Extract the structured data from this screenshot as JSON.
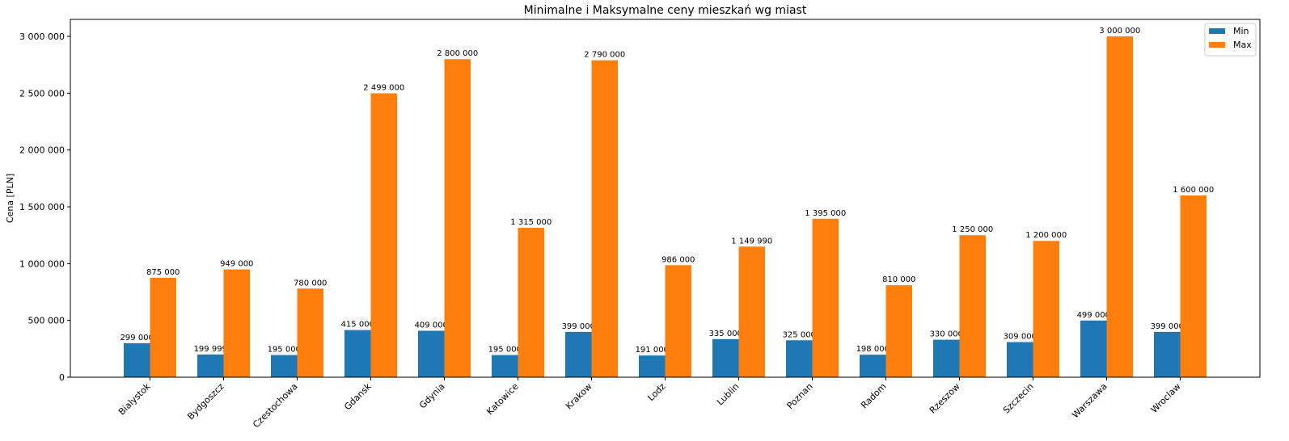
{
  "chart_data": {
    "type": "bar",
    "title": "Minimalne i Maksymalne ceny mieszkań wg miast",
    "xlabel": "",
    "ylabel": "Cena [PLN]",
    "ylim": [
      0,
      3150000
    ],
    "y_ticks": [
      0,
      500000,
      1000000,
      1500000,
      2000000,
      2500000,
      3000000
    ],
    "y_tick_labels": [
      "0",
      "500 000",
      "1 000 000",
      "1 500 000",
      "2 000 000",
      "2 500 000",
      "3 000 000"
    ],
    "categories": [
      "Bialystok",
      "Bydgoszcz",
      "Czestochowa",
      "Gdansk",
      "Gdynia",
      "Katowice",
      "Krakow",
      "Lodz",
      "Lublin",
      "Poznan",
      "Radom",
      "Rzeszow",
      "Szczecin",
      "Warszawa",
      "Wroclaw"
    ],
    "series": [
      {
        "name": "Min",
        "color": "#1f77b4",
        "values": [
          299000,
          199999,
          195000,
          415000,
          409000,
          195000,
          399000,
          191000,
          335000,
          325000,
          198000,
          330000,
          309000,
          499000,
          399000
        ],
        "labels": [
          "299 000",
          "199 999",
          "195 000",
          "415 000",
          "409 000",
          "195 000",
          "399 000",
          "191 000",
          "335 000",
          "325 000",
          "198 000",
          "330 000",
          "309 000",
          "499 000",
          "399 000"
        ]
      },
      {
        "name": "Max",
        "color": "#ff7f0e",
        "values": [
          875000,
          949000,
          780000,
          2499000,
          2800000,
          1315000,
          2790000,
          986000,
          1149990,
          1395000,
          810000,
          1250000,
          1200000,
          3000000,
          1600000
        ],
        "labels": [
          "875 000",
          "949 000",
          "780 000",
          "2 499 000",
          "2 800 000",
          "1 315 000",
          "2 790 000",
          "986 000",
          "1 149 990",
          "1 395 000",
          "810 000",
          "1 250 000",
          "1 200 000",
          "3 000 000",
          "1 600 000"
        ]
      }
    ],
    "legend": "top-right",
    "grid": false
  }
}
